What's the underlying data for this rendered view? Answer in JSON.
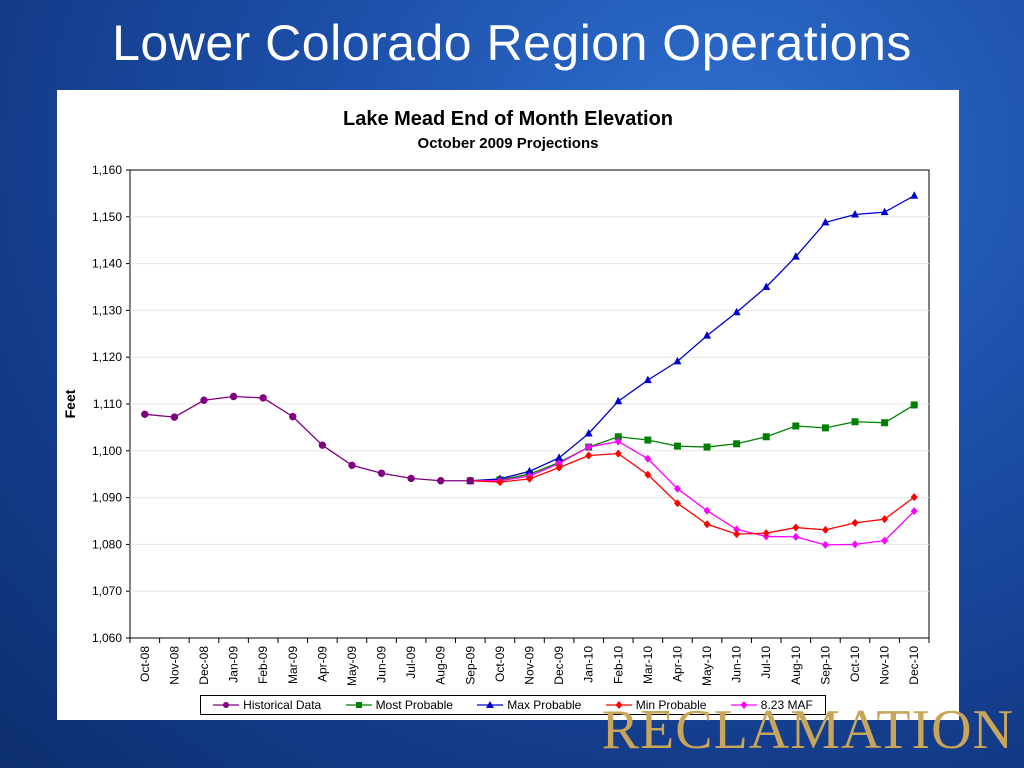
{
  "slide": {
    "title": "Lower Colorado Region Operations",
    "logo_text": "RECLAMATION"
  },
  "colors": {
    "background": "#1c4fa8",
    "logo": "#c9a55a",
    "historical": "#800080",
    "most_probable": "#008000",
    "max_probable": "#0000cc",
    "min_probable": "#ff0000",
    "maf_823": "#ff00ff"
  },
  "chart_data": {
    "type": "line",
    "title": "Lake Mead End of Month Elevation",
    "subtitle": "October 2009 Projections",
    "xlabel": "",
    "ylabel": "Feet",
    "ylim": [
      1060,
      1160
    ],
    "yticks": [
      "1,060",
      "1,070",
      "1,080",
      "1,090",
      "1,100",
      "1,110",
      "1,120",
      "1,130",
      "1,140",
      "1,150",
      "1,160"
    ],
    "grid": true,
    "legend_position": "bottom",
    "categories": [
      "Oct-08",
      "Nov-08",
      "Dec-08",
      "Jan-09",
      "Feb-09",
      "Mar-09",
      "Apr-09",
      "May-09",
      "Jun-09",
      "Jul-09",
      "Aug-09",
      "Sep-09",
      "Oct-09",
      "Nov-09",
      "Dec-09",
      "Jan-10",
      "Feb-10",
      "Mar-10",
      "Apr-10",
      "May-10",
      "Jun-10",
      "Jul-10",
      "Aug-10",
      "Sep-10",
      "Oct-10",
      "Nov-10",
      "Dec-10"
    ],
    "series": [
      {
        "name": "Historical Data",
        "color_key": "historical",
        "marker": "circle",
        "values": [
          1107.8,
          1107.2,
          1110.8,
          1111.6,
          1111.3,
          1107.3,
          1101.2,
          1096.9,
          1095.2,
          1094.1,
          1093.6,
          1093.6,
          null,
          null,
          null,
          null,
          null,
          null,
          null,
          null,
          null,
          null,
          null,
          null,
          null,
          null,
          null
        ]
      },
      {
        "name": "Most Probable",
        "color_key": "most_probable",
        "marker": "square",
        "values": [
          null,
          null,
          null,
          null,
          null,
          null,
          null,
          null,
          null,
          null,
          null,
          1093.6,
          1093.8,
          1095.0,
          1097.5,
          1100.8,
          1103.0,
          1102.3,
          1101.0,
          1100.8,
          1101.5,
          1103.0,
          1105.3,
          1104.9,
          1106.2,
          1106.0,
          1109.8
        ]
      },
      {
        "name": "Max Probable",
        "color_key": "max_probable",
        "marker": "triangle",
        "values": [
          null,
          null,
          null,
          null,
          null,
          null,
          null,
          null,
          null,
          null,
          null,
          1093.6,
          1094.0,
          1095.6,
          1098.5,
          1103.7,
          1110.6,
          1115.1,
          1119.1,
          1124.6,
          1129.6,
          1135.0,
          1141.5,
          1148.8,
          1150.5,
          1151.0,
          1154.5
        ]
      },
      {
        "name": "Min Probable",
        "color_key": "min_probable",
        "marker": "diamond",
        "values": [
          null,
          null,
          null,
          null,
          null,
          null,
          null,
          null,
          null,
          null,
          null,
          1093.6,
          1093.3,
          1094.0,
          1096.4,
          1099.0,
          1099.4,
          1094.9,
          1088.8,
          1084.3,
          1082.2,
          1082.4,
          1083.6,
          1083.1,
          1084.6,
          1085.4,
          1090.1
        ]
      },
      {
        "name": "8.23 MAF",
        "color_key": "maf_823",
        "marker": "diamond",
        "values": [
          null,
          null,
          null,
          null,
          null,
          null,
          null,
          null,
          null,
          null,
          null,
          1093.6,
          1093.6,
          1094.6,
          1097.3,
          1100.8,
          1102.0,
          1098.3,
          1091.9,
          1087.2,
          1083.2,
          1081.7,
          1081.6,
          1079.9,
          1080.0,
          1080.8,
          1087.1
        ]
      }
    ]
  }
}
